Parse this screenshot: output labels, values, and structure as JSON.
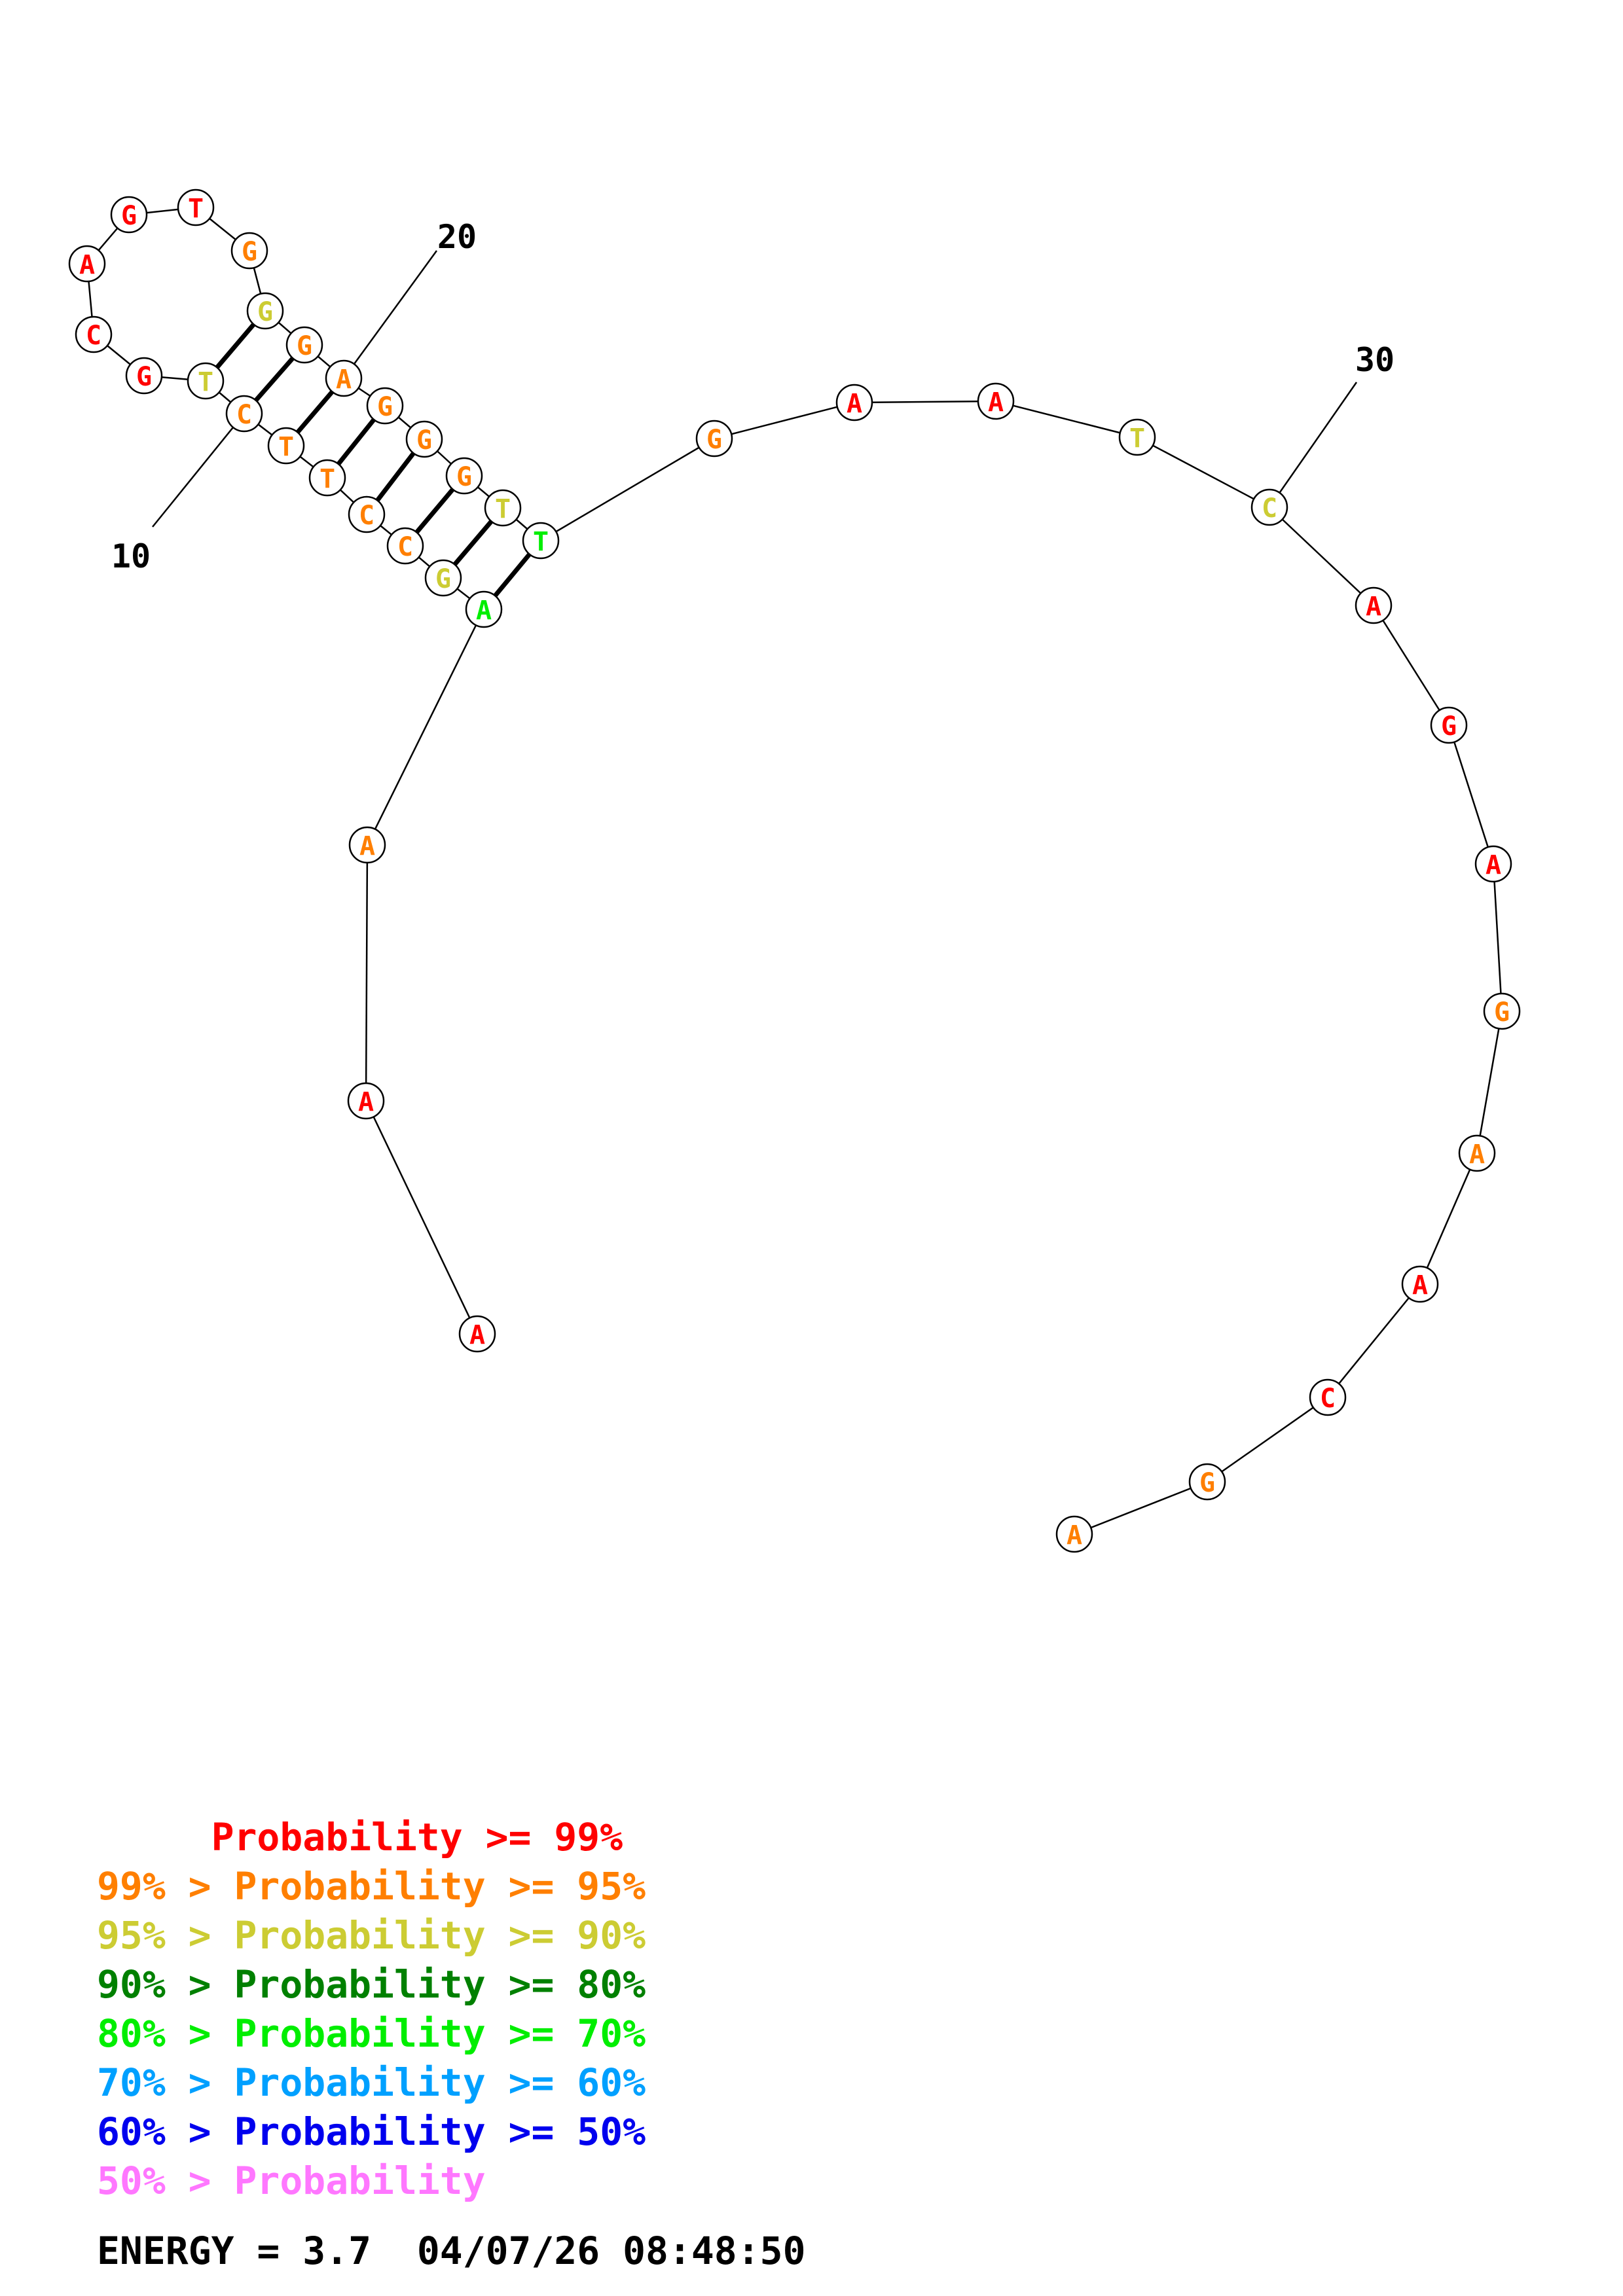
{
  "colors": {
    "p99": "#ff0000",
    "p95": "#ff7f00",
    "p90": "#cccc33",
    "p80": "#008000",
    "p70": "#00ee00",
    "p60": "#00a0ff",
    "p50": "#0000ee",
    "p0": "#ff77ff"
  },
  "sequence": [
    {
      "n": 1,
      "base": "A",
      "prob": "p99"
    },
    {
      "n": 2,
      "base": "A",
      "prob": "p99"
    },
    {
      "n": 3,
      "base": "A",
      "prob": "p95"
    },
    {
      "n": 4,
      "base": "A",
      "prob": "p70"
    },
    {
      "n": 5,
      "base": "G",
      "prob": "p90"
    },
    {
      "n": 6,
      "base": "C",
      "prob": "p95"
    },
    {
      "n": 7,
      "base": "C",
      "prob": "p95"
    },
    {
      "n": 8,
      "base": "T",
      "prob": "p95"
    },
    {
      "n": 9,
      "base": "T",
      "prob": "p95"
    },
    {
      "n": 10,
      "base": "C",
      "prob": "p95"
    },
    {
      "n": 11,
      "base": "T",
      "prob": "p90"
    },
    {
      "n": 12,
      "base": "G",
      "prob": "p99"
    },
    {
      "n": 13,
      "base": "C",
      "prob": "p99"
    },
    {
      "n": 14,
      "base": "A",
      "prob": "p99"
    },
    {
      "n": 15,
      "base": "G",
      "prob": "p99"
    },
    {
      "n": 16,
      "base": "T",
      "prob": "p99"
    },
    {
      "n": 17,
      "base": "G",
      "prob": "p95"
    },
    {
      "n": 18,
      "base": "G",
      "prob": "p90"
    },
    {
      "n": 19,
      "base": "G",
      "prob": "p95"
    },
    {
      "n": 20,
      "base": "A",
      "prob": "p95"
    },
    {
      "n": 21,
      "base": "G",
      "prob": "p95"
    },
    {
      "n": 22,
      "base": "G",
      "prob": "p95"
    },
    {
      "n": 23,
      "base": "G",
      "prob": "p95"
    },
    {
      "n": 24,
      "base": "T",
      "prob": "p90"
    },
    {
      "n": 25,
      "base": "T",
      "prob": "p70"
    },
    {
      "n": 26,
      "base": "G",
      "prob": "p95"
    },
    {
      "n": 27,
      "base": "A",
      "prob": "p99"
    },
    {
      "n": 28,
      "base": "A",
      "prob": "p99"
    },
    {
      "n": 29,
      "base": "T",
      "prob": "p90"
    },
    {
      "n": 30,
      "base": "C",
      "prob": "p90"
    },
    {
      "n": 31,
      "base": "A",
      "prob": "p99"
    },
    {
      "n": 32,
      "base": "G",
      "prob": "p99"
    },
    {
      "n": 33,
      "base": "A",
      "prob": "p99"
    },
    {
      "n": 34,
      "base": "G",
      "prob": "p95"
    },
    {
      "n": 35,
      "base": "A",
      "prob": "p95"
    },
    {
      "n": 36,
      "base": "A",
      "prob": "p99"
    },
    {
      "n": 37,
      "base": "C",
      "prob": "p99"
    },
    {
      "n": 38,
      "base": "G",
      "prob": "p95"
    },
    {
      "n": 39,
      "base": "A",
      "prob": "p95"
    }
  ],
  "pairs": [
    [
      4,
      25
    ],
    [
      5,
      24
    ],
    [
      6,
      23
    ],
    [
      7,
      22
    ],
    [
      8,
      21
    ],
    [
      9,
      20
    ],
    [
      10,
      19
    ],
    [
      11,
      18
    ]
  ],
  "position_labels": [
    "10",
    "20",
    "30"
  ],
  "legend": [
    {
      "text": "     Probability >= 99%",
      "color": "p99"
    },
    {
      "text": "99% > Probability >= 95%",
      "color": "p95"
    },
    {
      "text": "95% > Probability >= 90%",
      "color": "p90"
    },
    {
      "text": "90% > Probability >= 80%",
      "color": "p80"
    },
    {
      "text": "80% > Probability >= 70%",
      "color": "p70"
    },
    {
      "text": "70% > Probability >= 60%",
      "color": "p60"
    },
    {
      "text": "60% > Probability >= 50%",
      "color": "p50"
    },
    {
      "text": "50% > Probability",
      "color": "p0"
    }
  ],
  "footer": {
    "energy": "ENERGY = 3.7  04/07/26 08:48:50"
  }
}
